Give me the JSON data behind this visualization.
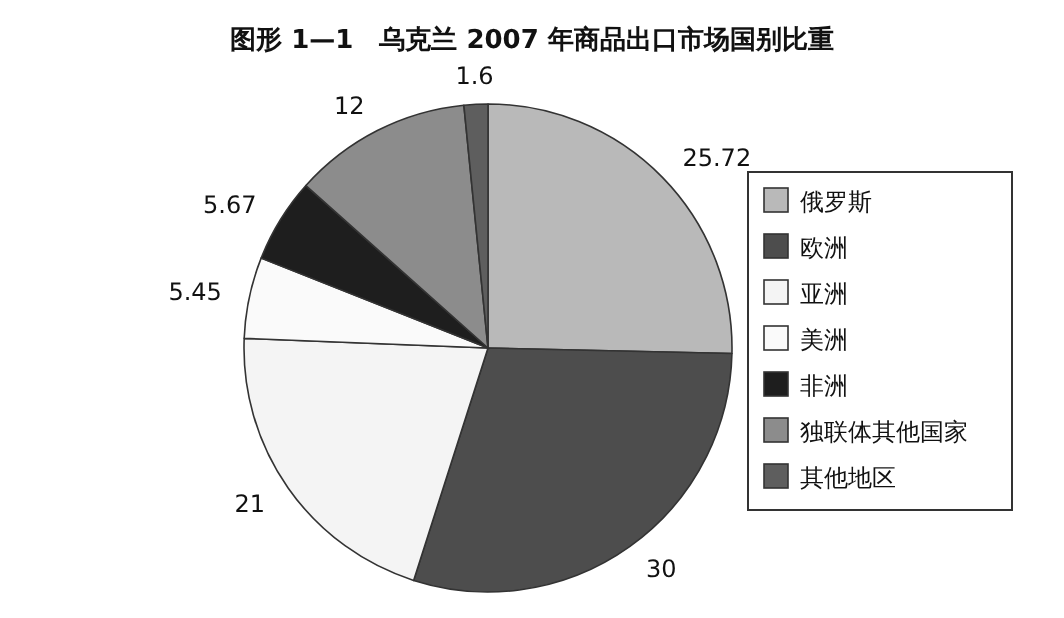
{
  "chart_data": {
    "type": "pie",
    "title": "图形 1—1　乌克兰 2007 年商品出口市场国别比重",
    "categories": [
      "俄罗斯",
      "欧洲",
      "亚洲",
      "美洲",
      "非洲",
      "独联体其他国家",
      "其他地区"
    ],
    "values": [
      25.72,
      30,
      21,
      5.45,
      5.67,
      12,
      1.6
    ],
    "colors": [
      "#b9b9b9",
      "#4d4d4d",
      "#f4f4f4",
      "#fafafa",
      "#1e1e1e",
      "#8c8c8c",
      "#5e5e5e"
    ],
    "data_labels": true,
    "legend": "right"
  }
}
